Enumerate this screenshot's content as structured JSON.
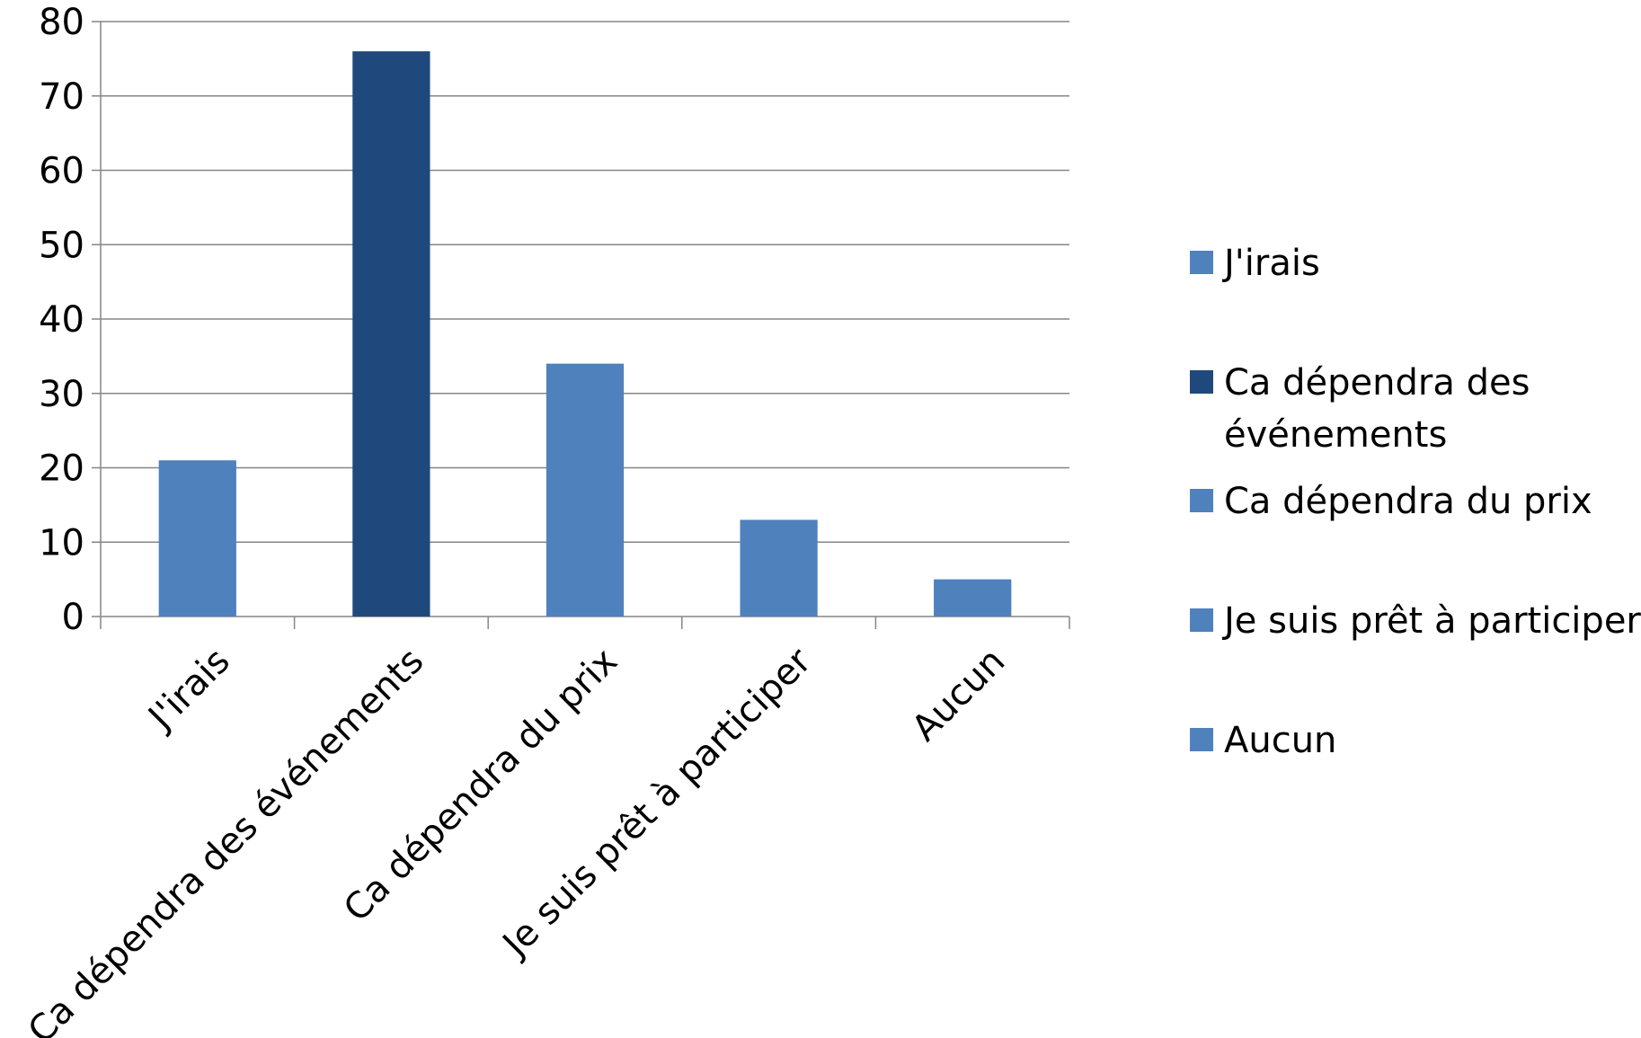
{
  "chart_data": {
    "type": "bar",
    "title": "",
    "xlabel": "",
    "ylabel": "",
    "categories": [
      "J'irais",
      "Ca dépendra des événements",
      "Ca dépendra du prix",
      "Je suis prêt à participer",
      "Aucun"
    ],
    "values": [
      21,
      76,
      34,
      13,
      5
    ],
    "colors": [
      "#4F81BD",
      "#1F497D",
      "#4F81BD",
      "#4F81BD",
      "#4F81BD"
    ],
    "ylim": [
      0,
      80
    ],
    "yticks": [
      0,
      10,
      20,
      30,
      40,
      50,
      60,
      70,
      80
    ],
    "grid": true,
    "legend_position": "right",
    "legend": [
      {
        "label": "J'irais",
        "lines": [
          "J'irais"
        ],
        "color": "#4F81BD"
      },
      {
        "label": "Ca dépendra des événements",
        "lines": [
          "Ca dépendra des",
          "événements"
        ],
        "color": "#1F497D"
      },
      {
        "label": "Ca dépendra du prix",
        "lines": [
          "Ca dépendra du prix"
        ],
        "color": "#4F81BD"
      },
      {
        "label": "Je suis prêt à participer",
        "lines": [
          "Je suis prêt à participer"
        ],
        "color": "#4F81BD"
      },
      {
        "label": "Aucun",
        "lines": [
          "Aucun"
        ],
        "color": "#4F81BD"
      }
    ]
  }
}
